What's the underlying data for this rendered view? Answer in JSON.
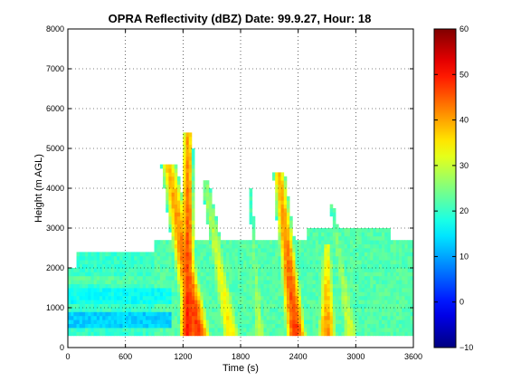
{
  "chart_data": {
    "type": "heatmap",
    "title": "OPRA Reflectivity (dBZ)  Date: 99.9.27, Hour: 18",
    "xlabel": "Time (s)",
    "ylabel": "Height (m AGL)",
    "xlim": [
      0,
      3600
    ],
    "ylim": [
      0,
      8000
    ],
    "x_ticks": [
      0,
      600,
      1200,
      1800,
      2400,
      3000,
      3600
    ],
    "x_tick_labels": [
      "0",
      "600",
      "1200",
      "1800",
      "2400",
      "3000",
      "3600"
    ],
    "y_ticks": [
      0,
      1000,
      2000,
      3000,
      4000,
      5000,
      6000,
      7000,
      8000
    ],
    "y_tick_labels": [
      "0",
      "1000",
      "2000",
      "3000",
      "4000",
      "5000",
      "6000",
      "7000",
      "8000"
    ],
    "grid": true,
    "grid_style": "dotted",
    "colormap": "jet",
    "clim": [
      -10,
      60
    ],
    "colorbar_ticks": [
      -10,
      0,
      10,
      20,
      30,
      40,
      50,
      60
    ],
    "colorbar_tick_labels": [
      "−10",
      "0",
      "10",
      "20",
      "30",
      "40",
      "50",
      "60"
    ],
    "x_step": 30,
    "y_step": 100,
    "no_data": "white",
    "field": {
      "bottom": 300,
      "background_echo": [
        {
          "x_range": [
            0,
            1050
          ],
          "top": 2000,
          "dbz": 20
        },
        {
          "x_range": [
            90,
            1000
          ],
          "top": 2350,
          "dbz": 20
        },
        {
          "x_range": [
            900,
            1050
          ],
          "top": 2700,
          "dbz": 22
        },
        {
          "x_range": [
            1050,
            3600
          ],
          "top": 2650,
          "dbz": 22
        },
        {
          "x_range": [
            2500,
            3350
          ],
          "top": 3000,
          "dbz": 22
        }
      ],
      "layers": [
        {
          "x_range": [
            0,
            1080
          ],
          "y_range": [
            550,
            900
          ],
          "dbz": 13
        },
        {
          "x_range": [
            0,
            1080
          ],
          "y_range": [
            1100,
            1500
          ],
          "dbz": 17
        },
        {
          "x_range": [
            0,
            1080
          ],
          "y_range": [
            1600,
            1800
          ],
          "dbz": 22
        }
      ],
      "cells": [
        {
          "x_bottom": 1350,
          "x_top": 1050,
          "top": 4600,
          "peak": 48,
          "half_width": 120
        },
        {
          "x_bottom": 1250,
          "x_top": 1250,
          "top": 5400,
          "peak": 50,
          "half_width": 75
        },
        {
          "x_bottom": 1700,
          "x_top": 1430,
          "top": 4200,
          "peak": 36,
          "half_width": 100
        },
        {
          "x_bottom": 2000,
          "x_top": 1900,
          "top": 4000,
          "peak": 30,
          "half_width": 70
        },
        {
          "x_bottom": 2380,
          "x_top": 2200,
          "top": 4400,
          "peak": 48,
          "half_width": 95
        },
        {
          "x_bottom": 2700,
          "x_top": 2700,
          "top": 2600,
          "peak": 42,
          "half_width": 90
        },
        {
          "x_bottom": 2950,
          "x_top": 2750,
          "top": 3600,
          "peak": 32,
          "half_width": 90
        }
      ]
    }
  }
}
